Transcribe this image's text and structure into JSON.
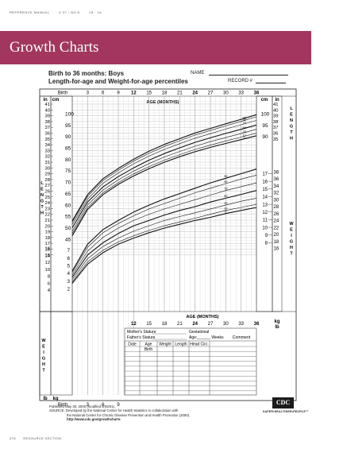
{
  "running_head": {
    "journal": "REFERENCE MANUAL",
    "issue": "V 37 / NO 6",
    "pages": "15 · 16"
  },
  "banner": {
    "title": "Growth Charts",
    "color": "#a2365e"
  },
  "form": {
    "heading1": "Birth to 36 months: Boys",
    "heading2": "Length-for-age and Weight-for-age percentiles",
    "name_label": "NAME",
    "record_label": "RECORD #"
  },
  "chart_data": {
    "type": "line",
    "x_label_top": "AGE (MONTHS)",
    "x_label_bottom": "AGE (MONTHS)",
    "x_ticks_top": [
      "Birth",
      "3",
      "6",
      "9",
      "12",
      "15",
      "18",
      "21",
      "24",
      "27",
      "30",
      "33",
      "36"
    ],
    "x_ticks_mid": [
      "12",
      "15",
      "18",
      "21",
      "24",
      "27",
      "30",
      "33",
      "36"
    ],
    "x_ticks_bottom": [
      "Birth",
      "3",
      "6",
      "9"
    ],
    "bold_x_ticks": [
      "12",
      "24",
      "36"
    ],
    "xlim": [
      0,
      36
    ],
    "length_axis": {
      "unit_in": "in",
      "unit_cm": "cm",
      "in_ticks": [
        "41",
        "40",
        "39",
        "38",
        "37",
        "36",
        "35",
        "34",
        "33",
        "32",
        "31",
        "30",
        "29",
        "28",
        "27",
        "26",
        "25",
        "24",
        "23",
        "22",
        "21",
        "20",
        "19",
        "18",
        "17",
        "16",
        "15"
      ],
      "cm_ticks": [
        "100",
        "95",
        "90",
        "85",
        "80",
        "75",
        "70",
        "65",
        "60",
        "55",
        "50",
        "45"
      ],
      "right_in_ticks": [
        "41",
        "40",
        "39",
        "38",
        "37",
        "36",
        "35"
      ],
      "right_cm_ticks": [
        "100",
        "95",
        "90"
      ],
      "side_label": "LENGTH",
      "ylim_cm": [
        38.1,
        105
      ]
    },
    "weight_axis": {
      "unit_kg": "kg",
      "unit_lb": "lb",
      "right_kg_ticks": [
        "17",
        "16",
        "15",
        "14",
        "13",
        "12",
        "11",
        "10",
        "9",
        "8"
      ],
      "right_lb_ticks": [
        "38",
        "36",
        "34",
        "32",
        "30",
        "28",
        "26",
        "24",
        "22",
        "20",
        "18",
        "16"
      ],
      "left_lb_ticks": [
        "16",
        "14",
        "12",
        "10",
        "8",
        "6",
        "4"
      ],
      "left_kg_ticks": [
        "7",
        "6",
        "5",
        "4",
        "3",
        "2"
      ],
      "side_label": "WEIGHT",
      "ylim_kg": [
        1.5,
        18
      ]
    },
    "percentile_labels": [
      "95",
      "90",
      "75",
      "50",
      "25",
      "10",
      "5"
    ],
    "length_series": [
      {
        "name": "95",
        "values": [
          [
            0,
            53.0
          ],
          [
            3,
            64.5
          ],
          [
            6,
            71.5
          ],
          [
            9,
            76.0
          ],
          [
            12,
            80.0
          ],
          [
            15,
            83.5
          ],
          [
            18,
            86.5
          ],
          [
            21,
            89.0
          ],
          [
            24,
            91.5
          ],
          [
            27,
            93.5
          ],
          [
            30,
            95.5
          ],
          [
            33,
            97.5
          ],
          [
            36,
            99.5
          ]
        ]
      },
      {
        "name": "90",
        "values": [
          [
            0,
            52.5
          ],
          [
            3,
            63.7
          ],
          [
            6,
            70.7
          ],
          [
            9,
            75.2
          ],
          [
            12,
            79.2
          ],
          [
            15,
            82.6
          ],
          [
            18,
            85.6
          ],
          [
            21,
            88.1
          ],
          [
            24,
            90.6
          ],
          [
            27,
            92.6
          ],
          [
            30,
            94.6
          ],
          [
            33,
            96.6
          ],
          [
            36,
            98.6
          ]
        ]
      },
      {
        "name": "75",
        "values": [
          [
            0,
            51.5
          ],
          [
            3,
            62.5
          ],
          [
            6,
            69.5
          ],
          [
            9,
            74.0
          ],
          [
            12,
            78.0
          ],
          [
            15,
            81.4
          ],
          [
            18,
            84.3
          ],
          [
            21,
            86.8
          ],
          [
            24,
            89.2
          ],
          [
            27,
            91.2
          ],
          [
            30,
            93.2
          ],
          [
            33,
            95.1
          ],
          [
            36,
            97.0
          ]
        ]
      },
      {
        "name": "50",
        "values": [
          [
            0,
            50.0
          ],
          [
            3,
            61.3
          ],
          [
            6,
            67.9
          ],
          [
            9,
            72.4
          ],
          [
            12,
            76.2
          ],
          [
            15,
            79.6
          ],
          [
            18,
            82.5
          ],
          [
            21,
            85.0
          ],
          [
            24,
            87.4
          ],
          [
            27,
            89.4
          ],
          [
            30,
            91.3
          ],
          [
            33,
            93.1
          ],
          [
            36,
            95.0
          ]
        ]
      },
      {
        "name": "25",
        "values": [
          [
            0,
            48.5
          ],
          [
            3,
            60.0
          ],
          [
            6,
            66.5
          ],
          [
            9,
            71.0
          ],
          [
            12,
            74.8
          ],
          [
            15,
            78.1
          ],
          [
            18,
            81.0
          ],
          [
            21,
            83.4
          ],
          [
            24,
            85.7
          ],
          [
            27,
            87.7
          ],
          [
            30,
            89.5
          ],
          [
            33,
            91.3
          ],
          [
            36,
            93.1
          ]
        ]
      },
      {
        "name": "10",
        "values": [
          [
            0,
            47.5
          ],
          [
            3,
            58.8
          ],
          [
            6,
            65.3
          ],
          [
            9,
            69.8
          ],
          [
            12,
            73.6
          ],
          [
            15,
            76.8
          ],
          [
            18,
            79.6
          ],
          [
            21,
            82.0
          ],
          [
            24,
            84.3
          ],
          [
            27,
            86.2
          ],
          [
            30,
            88.0
          ],
          [
            33,
            89.7
          ],
          [
            36,
            91.4
          ]
        ]
      },
      {
        "name": "5",
        "values": [
          [
            0,
            46.5
          ],
          [
            3,
            58.0
          ],
          [
            6,
            64.5
          ],
          [
            9,
            69.0
          ],
          [
            12,
            72.7
          ],
          [
            15,
            75.9
          ],
          [
            18,
            78.7
          ],
          [
            21,
            81.1
          ],
          [
            24,
            83.3
          ],
          [
            27,
            85.2
          ],
          [
            30,
            86.9
          ],
          [
            33,
            88.6
          ],
          [
            36,
            90.3
          ]
        ]
      }
    ],
    "weight_series": [
      {
        "name": "95",
        "values": [
          [
            0,
            4.3
          ],
          [
            3,
            7.8
          ],
          [
            6,
            9.7
          ],
          [
            9,
            10.9
          ],
          [
            12,
            12.0
          ],
          [
            15,
            12.9
          ],
          [
            18,
            13.7
          ],
          [
            21,
            14.4
          ],
          [
            24,
            15.1
          ],
          [
            27,
            15.8
          ],
          [
            30,
            16.4
          ],
          [
            33,
            17.0
          ],
          [
            36,
            17.6
          ]
        ]
      },
      {
        "name": "90",
        "values": [
          [
            0,
            4.1
          ],
          [
            3,
            7.4
          ],
          [
            6,
            9.3
          ],
          [
            9,
            10.5
          ],
          [
            12,
            11.5
          ],
          [
            15,
            12.4
          ],
          [
            18,
            13.1
          ],
          [
            21,
            13.8
          ],
          [
            24,
            14.5
          ],
          [
            27,
            15.1
          ],
          [
            30,
            15.7
          ],
          [
            33,
            16.3
          ],
          [
            36,
            16.8
          ]
        ]
      },
      {
        "name": "75",
        "values": [
          [
            0,
            3.8
          ],
          [
            3,
            6.9
          ],
          [
            6,
            8.7
          ],
          [
            9,
            9.9
          ],
          [
            12,
            10.9
          ],
          [
            15,
            11.7
          ],
          [
            18,
            12.4
          ],
          [
            21,
            13.0
          ],
          [
            24,
            13.6
          ],
          [
            27,
            14.2
          ],
          [
            30,
            14.8
          ],
          [
            33,
            15.3
          ],
          [
            36,
            15.8
          ]
        ]
      },
      {
        "name": "50",
        "values": [
          [
            0,
            3.5
          ],
          [
            3,
            6.4
          ],
          [
            6,
            8.0
          ],
          [
            9,
            9.2
          ],
          [
            12,
            10.2
          ],
          [
            15,
            10.9
          ],
          [
            18,
            11.6
          ],
          [
            21,
            12.2
          ],
          [
            24,
            12.7
          ],
          [
            27,
            13.3
          ],
          [
            30,
            13.8
          ],
          [
            33,
            14.3
          ],
          [
            36,
            14.8
          ]
        ]
      },
      {
        "name": "25",
        "values": [
          [
            0,
            3.2
          ],
          [
            3,
            5.9
          ],
          [
            6,
            7.5
          ],
          [
            9,
            8.6
          ],
          [
            12,
            9.5
          ],
          [
            15,
            10.2
          ],
          [
            18,
            10.9
          ],
          [
            21,
            11.4
          ],
          [
            24,
            11.9
          ],
          [
            27,
            12.4
          ],
          [
            30,
            12.9
          ],
          [
            33,
            13.4
          ],
          [
            36,
            13.8
          ]
        ]
      },
      {
        "name": "10",
        "values": [
          [
            0,
            2.9
          ],
          [
            3,
            5.5
          ],
          [
            6,
            7.0
          ],
          [
            9,
            8.1
          ],
          [
            12,
            8.9
          ],
          [
            15,
            9.6
          ],
          [
            18,
            10.2
          ],
          [
            21,
            10.7
          ],
          [
            24,
            11.2
          ],
          [
            27,
            11.7
          ],
          [
            30,
            12.2
          ],
          [
            33,
            12.6
          ],
          [
            36,
            13.0
          ]
        ]
      },
      {
        "name": "5",
        "values": [
          [
            0,
            2.7
          ],
          [
            3,
            5.2
          ],
          [
            6,
            6.7
          ],
          [
            9,
            7.8
          ],
          [
            12,
            8.6
          ],
          [
            15,
            9.3
          ],
          [
            18,
            9.9
          ],
          [
            21,
            10.4
          ],
          [
            24,
            10.9
          ],
          [
            27,
            11.3
          ],
          [
            30,
            11.8
          ],
          [
            33,
            12.2
          ],
          [
            36,
            12.6
          ]
        ]
      }
    ],
    "grid": true
  },
  "record_table": {
    "mothers_stature": "Mother's Stature",
    "fathers_stature": "Father's Stature",
    "gestational": "Gestational",
    "age_weeks": "Age:______ Weeks",
    "comment": "Comment",
    "columns": [
      "Date",
      "Age",
      "Weight",
      "Length",
      "Head Circ."
    ],
    "first_row_age": "Birth"
  },
  "footer": {
    "published": "Published May 30, 2000 (modified 4/20/01).",
    "source_1": "SOURCE: Developed by the National Center for Health Statistics in collaboration with",
    "source_2": "the National Center for Chronic Disease Prevention and Health Promotion (2000).",
    "url": "http://www.cdc.gov/growthcharts",
    "logo": "CDC",
    "tagline": "SAFER•HEALTHIER•PEOPLE™"
  },
  "footer_running": {
    "page": "378",
    "section": "RESOURCE SECTION"
  }
}
